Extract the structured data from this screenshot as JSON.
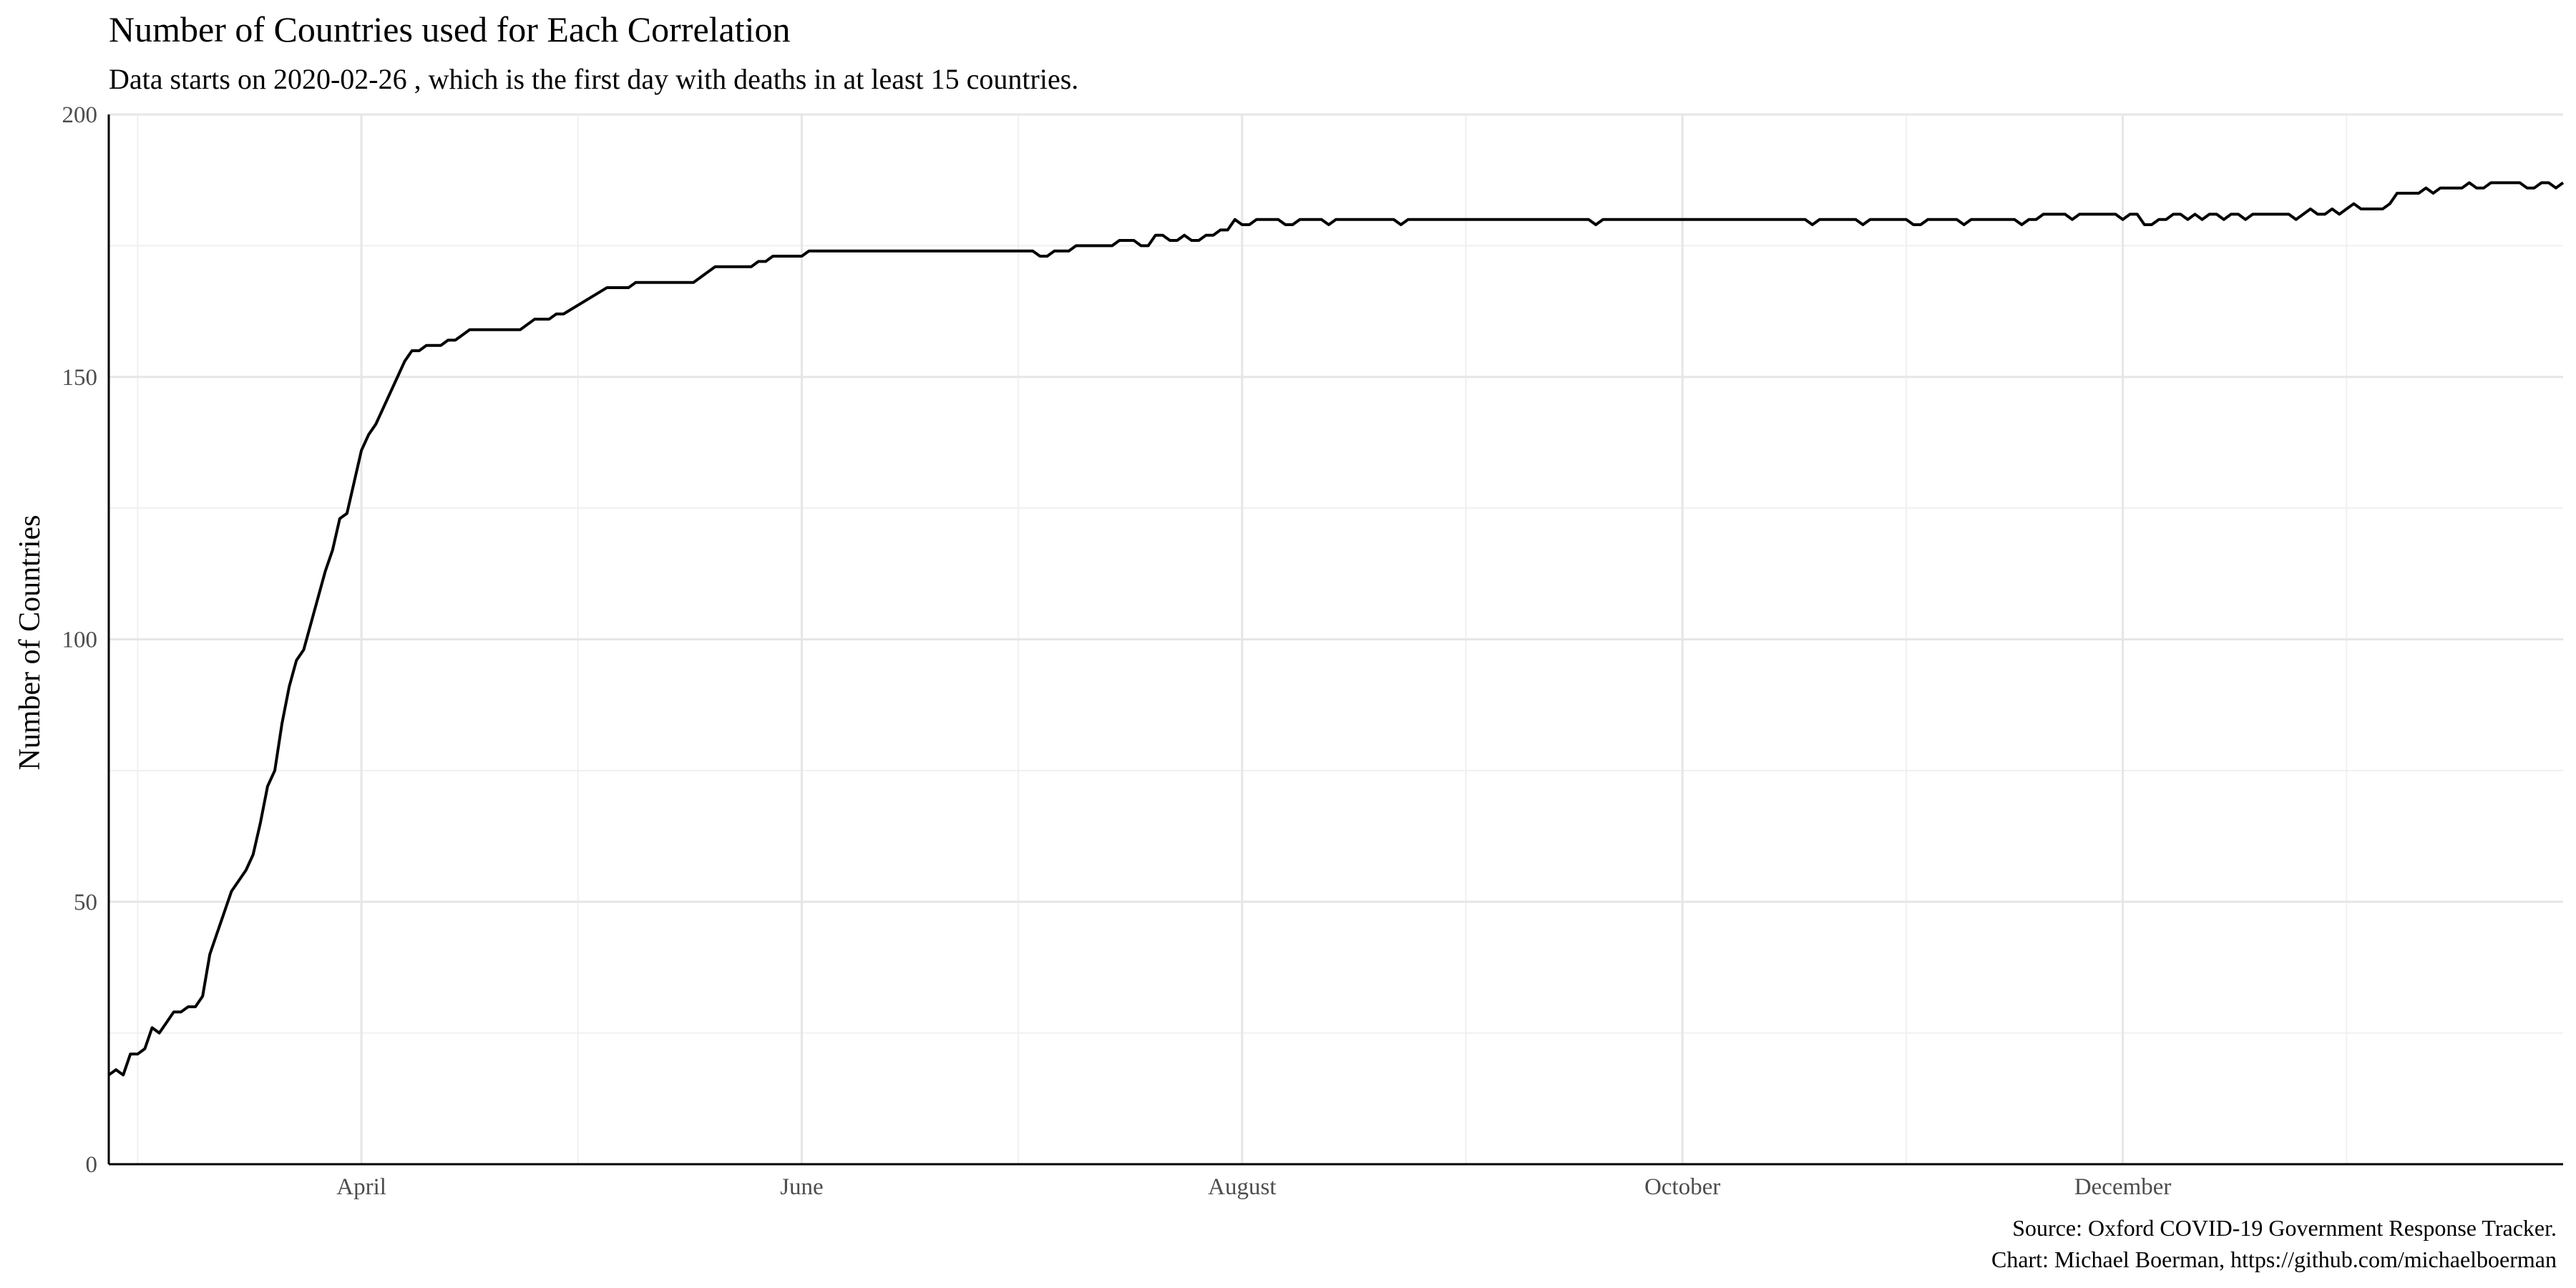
{
  "chart_data": {
    "type": "line",
    "title": "Number of Countries used for Each Correlation",
    "subtitle": "Data starts on 2020-02-26 , which is the first day with deaths in at least 15 countries.",
    "xlabel": "",
    "ylabel": "Number of Countries",
    "caption": [
      "Source: Oxford COVID-19 Government Response Tracker.",
      "Chart: Michael Boerman, https://github.com/michaelboerman"
    ],
    "xlim": [
      "2020-02-26",
      "2021-01-31"
    ],
    "ylim": [
      0,
      200
    ],
    "x_ticks": [
      {
        "date": "2020-04-01",
        "label": "April"
      },
      {
        "date": "2020-06-01",
        "label": "June"
      },
      {
        "date": "2020-08-01",
        "label": "August"
      },
      {
        "date": "2020-10-01",
        "label": "October"
      },
      {
        "date": "2020-12-01",
        "label": "December"
      }
    ],
    "x_minor_ticks": [
      "2020-03-01",
      "2020-05-01",
      "2020-07-01",
      "2020-09-01",
      "2020-11-01",
      "2021-01-01"
    ],
    "y_ticks": [
      0,
      50,
      100,
      150,
      200
    ],
    "y_minor_ticks": [
      25,
      75,
      125,
      175
    ],
    "grid": true,
    "legend": "none",
    "colors": {
      "line": "#000000",
      "grid": "#e6e6e6",
      "tick_text": "#4d4d4d"
    },
    "series": [
      {
        "points": [
          [
            "2020-02-26",
            17
          ],
          [
            "2020-02-27",
            18
          ],
          [
            "2020-02-28",
            17
          ],
          [
            "2020-02-29",
            21
          ],
          [
            "2020-03-01",
            21
          ],
          [
            "2020-03-02",
            22
          ],
          [
            "2020-03-03",
            26
          ],
          [
            "2020-03-04",
            25
          ],
          [
            "2020-03-05",
            27
          ],
          [
            "2020-03-06",
            29
          ],
          [
            "2020-03-07",
            29
          ],
          [
            "2020-03-08",
            30
          ],
          [
            "2020-03-09",
            30
          ],
          [
            "2020-03-10",
            32
          ],
          [
            "2020-03-11",
            40
          ],
          [
            "2020-03-12",
            44
          ],
          [
            "2020-03-13",
            48
          ],
          [
            "2020-03-14",
            52
          ],
          [
            "2020-03-15",
            54
          ],
          [
            "2020-03-16",
            56
          ],
          [
            "2020-03-17",
            59
          ],
          [
            "2020-03-18",
            65
          ],
          [
            "2020-03-19",
            72
          ],
          [
            "2020-03-20",
            75
          ],
          [
            "2020-03-21",
            84
          ],
          [
            "2020-03-22",
            91
          ],
          [
            "2020-03-23",
            96
          ],
          [
            "2020-03-24",
            98
          ],
          [
            "2020-03-25",
            103
          ],
          [
            "2020-03-26",
            108
          ],
          [
            "2020-03-27",
            113
          ],
          [
            "2020-03-28",
            117
          ],
          [
            "2020-03-29",
            123
          ],
          [
            "2020-03-30",
            124
          ],
          [
            "2020-03-31",
            130
          ],
          [
            "2020-04-01",
            136
          ],
          [
            "2020-04-02",
            139
          ],
          [
            "2020-04-03",
            141
          ],
          [
            "2020-04-04",
            144
          ],
          [
            "2020-04-05",
            147
          ],
          [
            "2020-04-06",
            150
          ],
          [
            "2020-04-07",
            153
          ],
          [
            "2020-04-08",
            155
          ],
          [
            "2020-04-09",
            155
          ],
          [
            "2020-04-10",
            156
          ],
          [
            "2020-04-11",
            156
          ],
          [
            "2020-04-12",
            156
          ],
          [
            "2020-04-13",
            157
          ],
          [
            "2020-04-14",
            157
          ],
          [
            "2020-04-15",
            158
          ],
          [
            "2020-04-16",
            159
          ],
          [
            "2020-04-17",
            159
          ],
          [
            "2020-04-20",
            159
          ],
          [
            "2020-04-23",
            159
          ],
          [
            "2020-04-25",
            161
          ],
          [
            "2020-04-27",
            161
          ],
          [
            "2020-04-28",
            162
          ],
          [
            "2020-04-29",
            162
          ],
          [
            "2020-05-05",
            167
          ],
          [
            "2020-05-08",
            167
          ],
          [
            "2020-05-09",
            168
          ],
          [
            "2020-05-17",
            168
          ],
          [
            "2020-05-20",
            171
          ],
          [
            "2020-05-25",
            171
          ],
          [
            "2020-05-26",
            172
          ],
          [
            "2020-05-27",
            172
          ],
          [
            "2020-05-28",
            173
          ],
          [
            "2020-06-01",
            173
          ],
          [
            "2020-06-02",
            174
          ],
          [
            "2020-07-03",
            174
          ],
          [
            "2020-07-04",
            173
          ],
          [
            "2020-07-05",
            173
          ],
          [
            "2020-07-06",
            174
          ],
          [
            "2020-07-08",
            174
          ],
          [
            "2020-07-09",
            175
          ],
          [
            "2020-07-14",
            175
          ],
          [
            "2020-07-15",
            176
          ],
          [
            "2020-07-16",
            176
          ],
          [
            "2020-07-17",
            176
          ],
          [
            "2020-07-18",
            175
          ],
          [
            "2020-07-19",
            175
          ],
          [
            "2020-07-20",
            177
          ],
          [
            "2020-07-21",
            177
          ],
          [
            "2020-07-22",
            176
          ],
          [
            "2020-07-23",
            176
          ],
          [
            "2020-07-24",
            177
          ],
          [
            "2020-07-25",
            176
          ],
          [
            "2020-07-26",
            176
          ],
          [
            "2020-07-27",
            177
          ],
          [
            "2020-07-28",
            177
          ],
          [
            "2020-07-29",
            178
          ],
          [
            "2020-07-30",
            178
          ],
          [
            "2020-07-31",
            180
          ],
          [
            "2020-08-01",
            179
          ],
          [
            "2020-08-02",
            179
          ],
          [
            "2020-08-03",
            180
          ],
          [
            "2020-08-06",
            180
          ],
          [
            "2020-08-07",
            179
          ],
          [
            "2020-08-08",
            179
          ],
          [
            "2020-08-09",
            180
          ],
          [
            "2020-08-12",
            180
          ],
          [
            "2020-08-13",
            179
          ],
          [
            "2020-08-14",
            180
          ],
          [
            "2020-08-22",
            180
          ],
          [
            "2020-08-23",
            179
          ],
          [
            "2020-08-24",
            180
          ],
          [
            "2020-09-18",
            180
          ],
          [
            "2020-09-19",
            179
          ],
          [
            "2020-09-20",
            180
          ],
          [
            "2020-10-18",
            180
          ],
          [
            "2020-10-19",
            179
          ],
          [
            "2020-10-20",
            180
          ],
          [
            "2020-10-25",
            180
          ],
          [
            "2020-10-26",
            179
          ],
          [
            "2020-10-27",
            180
          ],
          [
            "2020-11-01",
            180
          ],
          [
            "2020-11-02",
            179
          ],
          [
            "2020-11-03",
            179
          ],
          [
            "2020-11-04",
            180
          ],
          [
            "2020-11-08",
            180
          ],
          [
            "2020-11-09",
            179
          ],
          [
            "2020-11-10",
            180
          ],
          [
            "2020-11-16",
            180
          ],
          [
            "2020-11-17",
            179
          ],
          [
            "2020-11-18",
            180
          ],
          [
            "2020-11-19",
            180
          ],
          [
            "2020-11-20",
            181
          ],
          [
            "2020-11-23",
            181
          ],
          [
            "2020-11-24",
            180
          ],
          [
            "2020-11-25",
            181
          ],
          [
            "2020-11-30",
            181
          ],
          [
            "2020-12-01",
            180
          ],
          [
            "2020-12-02",
            181
          ],
          [
            "2020-12-03",
            181
          ],
          [
            "2020-12-04",
            179
          ],
          [
            "2020-12-05",
            179
          ],
          [
            "2020-12-06",
            180
          ],
          [
            "2020-12-07",
            180
          ],
          [
            "2020-12-08",
            181
          ],
          [
            "2020-12-09",
            181
          ],
          [
            "2020-12-10",
            180
          ],
          [
            "2020-12-11",
            181
          ],
          [
            "2020-12-12",
            180
          ],
          [
            "2020-12-13",
            181
          ],
          [
            "2020-12-14",
            181
          ],
          [
            "2020-12-15",
            180
          ],
          [
            "2020-12-16",
            181
          ],
          [
            "2020-12-17",
            181
          ],
          [
            "2020-12-18",
            180
          ],
          [
            "2020-12-19",
            181
          ],
          [
            "2020-12-24",
            181
          ],
          [
            "2020-12-25",
            180
          ],
          [
            "2020-12-26",
            181
          ],
          [
            "2020-12-27",
            182
          ],
          [
            "2020-12-28",
            181
          ],
          [
            "2020-12-29",
            181
          ],
          [
            "2020-12-30",
            182
          ],
          [
            "2020-12-31",
            181
          ],
          [
            "2021-01-01",
            182
          ],
          [
            "2021-01-02",
            183
          ],
          [
            "2021-01-03",
            182
          ],
          [
            "2021-01-04",
            182
          ],
          [
            "2021-01-05",
            182
          ],
          [
            "2021-01-06",
            182
          ],
          [
            "2021-01-07",
            183
          ],
          [
            "2021-01-08",
            185
          ],
          [
            "2021-01-09",
            185
          ],
          [
            "2021-01-11",
            185
          ],
          [
            "2021-01-12",
            186
          ],
          [
            "2021-01-13",
            185
          ],
          [
            "2021-01-14",
            186
          ],
          [
            "2021-01-15",
            186
          ],
          [
            "2021-01-17",
            186
          ],
          [
            "2021-01-18",
            187
          ],
          [
            "2021-01-19",
            186
          ],
          [
            "2021-01-20",
            186
          ],
          [
            "2021-01-21",
            187
          ],
          [
            "2021-01-22",
            187
          ],
          [
            "2021-01-25",
            187
          ],
          [
            "2021-01-26",
            186
          ],
          [
            "2021-01-27",
            186
          ],
          [
            "2021-01-28",
            187
          ],
          [
            "2021-01-29",
            187
          ],
          [
            "2021-01-30",
            186
          ],
          [
            "2021-01-31",
            187
          ]
        ]
      }
    ]
  }
}
